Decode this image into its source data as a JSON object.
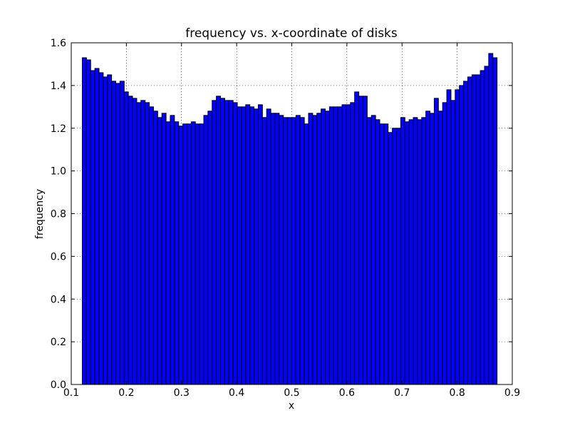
{
  "chart_data": {
    "type": "bar",
    "title": "frequency vs. x-coordinate of disks",
    "xlabel": "x",
    "ylabel": "frequency",
    "xlim": [
      0.1,
      0.9
    ],
    "ylim": [
      0.0,
      1.6
    ],
    "xticks": [
      "0.1",
      "0.2",
      "0.3",
      "0.4",
      "0.5",
      "0.6",
      "0.7",
      "0.8",
      "0.9"
    ],
    "yticks": [
      "0.0",
      "0.2",
      "0.4",
      "0.6",
      "0.8",
      "1.0",
      "1.2",
      "1.4",
      "1.6"
    ],
    "grid": true,
    "bar_color": "#0000ff",
    "edge_color": "#000000",
    "bin_start": 0.12,
    "bin_width": 0.0076,
    "values": [
      1.53,
      1.52,
      1.47,
      1.48,
      1.46,
      1.44,
      1.45,
      1.42,
      1.41,
      1.42,
      1.37,
      1.35,
      1.34,
      1.32,
      1.33,
      1.32,
      1.3,
      1.28,
      1.25,
      1.27,
      1.23,
      1.26,
      1.23,
      1.21,
      1.22,
      1.22,
      1.23,
      1.22,
      1.22,
      1.26,
      1.28,
      1.33,
      1.35,
      1.34,
      1.33,
      1.33,
      1.32,
      1.3,
      1.3,
      1.31,
      1.3,
      1.29,
      1.31,
      1.25,
      1.29,
      1.27,
      1.27,
      1.26,
      1.25,
      1.25,
      1.25,
      1.26,
      1.25,
      1.22,
      1.27,
      1.26,
      1.27,
      1.29,
      1.28,
      1.3,
      1.3,
      1.3,
      1.31,
      1.31,
      1.32,
      1.37,
      1.35,
      1.35,
      1.25,
      1.26,
      1.24,
      1.22,
      1.22,
      1.18,
      1.2,
      1.2,
      1.25,
      1.23,
      1.24,
      1.25,
      1.24,
      1.25,
      1.28,
      1.27,
      1.34,
      1.28,
      1.32,
      1.38,
      1.33,
      1.38,
      1.4,
      1.42,
      1.44,
      1.45,
      1.45,
      1.47,
      1.49,
      1.55,
      1.53
    ]
  }
}
